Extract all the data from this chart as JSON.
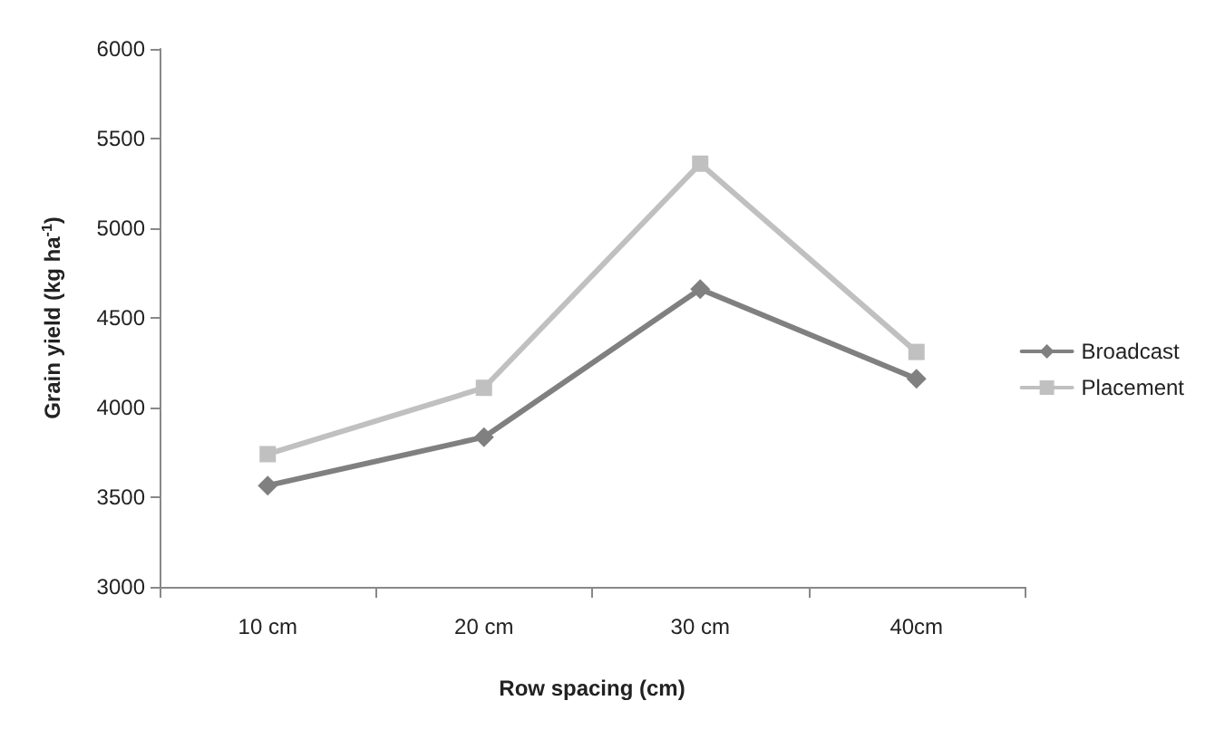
{
  "chart_data": {
    "type": "line",
    "xlabel": "Row spacing (cm)",
    "ylabel": "Grain yield (kg ha$^{-1}$)",
    "categories": [
      "10 cm",
      "20 cm",
      "30 cm",
      "40cm"
    ],
    "series": [
      {
        "name": "Broadcast",
        "color": "#808080",
        "marker": "diamond",
        "values": [
          3565,
          3835,
          4660,
          4160
        ]
      },
      {
        "name": "Placement",
        "color": "#c0c0c0",
        "marker": "square",
        "values": [
          3740,
          4110,
          5360,
          4310
        ]
      }
    ],
    "ylim": [
      3000,
      6000
    ],
    "yticks": [
      3000,
      3500,
      4000,
      4500,
      5000,
      5500,
      6000
    ],
    "grid": false,
    "legend": "right",
    "line_style": "solid"
  }
}
